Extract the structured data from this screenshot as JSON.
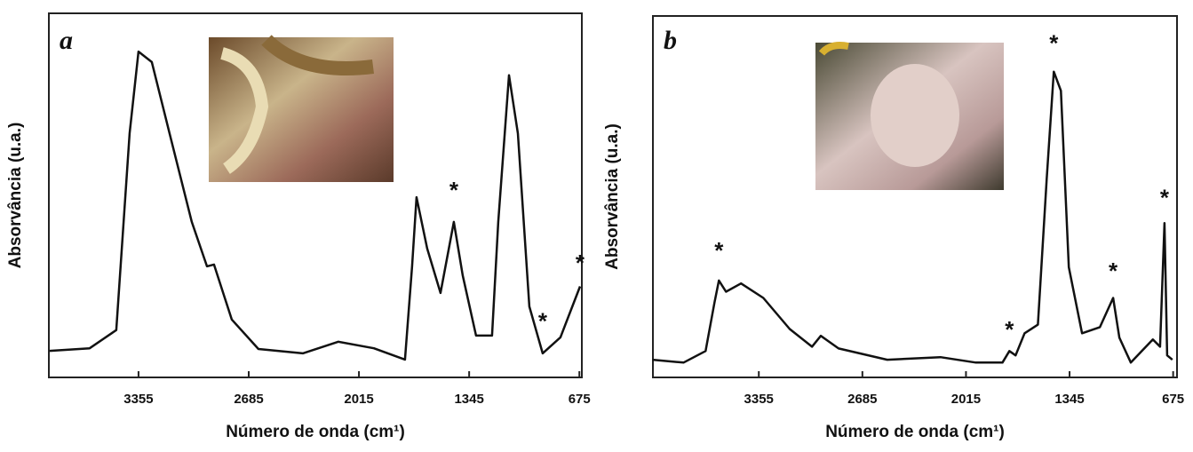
{
  "chart_data": [
    {
      "type": "line",
      "panel_label": "a",
      "xlabel": "Número de onda (cm¹)",
      "ylabel": "Absorvância (u.a.)",
      "color": "#111111",
      "xlim": [
        3900,
        660
      ],
      "ylim": [
        0,
        100
      ],
      "xticks": [
        3355,
        2685,
        2015,
        1345,
        675
      ],
      "x": [
        3895,
        3652,
        3490,
        3409,
        3355,
        3274,
        3166,
        3031,
        2939,
        2896,
        2788,
        2626,
        2356,
        2140,
        1924,
        1735,
        1692,
        1665,
        1600,
        1519,
        1438,
        1384,
        1303,
        1206,
        1168,
        1103,
        1049,
        979,
        898,
        790,
        671
      ],
      "values": [
        7.3,
        8,
        13,
        67,
        89.5,
        86.6,
        67,
        42.7,
        30.5,
        31,
        15.9,
        7.8,
        6.6,
        9.8,
        8,
        4.9,
        30.5,
        49.5,
        35.4,
        23.2,
        42.7,
        28,
        11.5,
        11.5,
        42.7,
        83,
        67,
        19.5,
        6.6,
        11,
        25
      ],
      "annotations": [
        {
          "text": "*",
          "x": 1438,
          "y": 48
        },
        {
          "text": "*",
          "x": 898,
          "y": 12
        },
        {
          "text": "*",
          "x": 671,
          "y": 28
        }
      ]
    },
    {
      "type": "line",
      "panel_label": "b",
      "xlabel": "Número de onda (cm¹)",
      "ylabel": "Absorvância (u.a.)",
      "color": "#111111",
      "xlim": [
        4040,
        650
      ],
      "ylim": [
        0,
        100
      ],
      "xticks": [
        3355,
        2685,
        2015,
        1345,
        675
      ],
      "x": [
        4043,
        3842,
        3699,
        3642,
        3613,
        3567,
        3470,
        3326,
        3155,
        3011,
        2954,
        2839,
        2524,
        2180,
        1951,
        1779,
        1734,
        1694,
        1636,
        1550,
        1493,
        1447,
        1401,
        1350,
        1264,
        1149,
        1063,
        1023,
        949,
        806,
        760,
        731,
        714,
        680
      ],
      "values": [
        4.9,
        4.1,
        7.3,
        20.7,
        26.8,
        23.7,
        26,
        22,
        13.4,
        8.5,
        11.5,
        8,
        4.9,
        5.6,
        4.1,
        4.1,
        7.3,
        6.1,
        12.2,
        14.6,
        54.9,
        84.6,
        79.3,
        30.5,
        12.2,
        13.9,
        22,
        11,
        4.1,
        10.5,
        8.5,
        42.7,
        6.1,
        4.9
      ],
      "annotations": [
        {
          "text": "*",
          "x": 3613,
          "y": 31.7
        },
        {
          "text": "*",
          "x": 1734,
          "y": 9.8
        },
        {
          "text": "*",
          "x": 1447,
          "y": 89
        },
        {
          "text": "*",
          "x": 1063,
          "y": 26
        },
        {
          "text": "*",
          "x": 731,
          "y": 46.3
        }
      ]
    }
  ]
}
